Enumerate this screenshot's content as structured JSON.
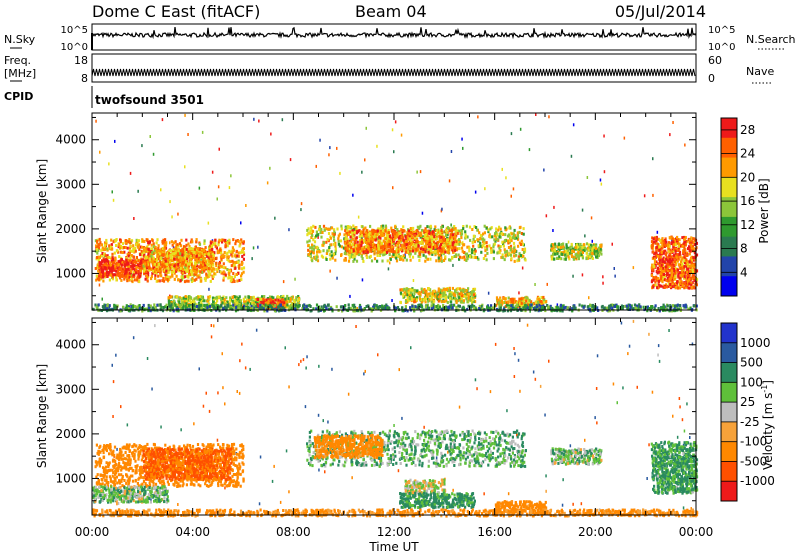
{
  "header": {
    "station": "Dome C East (fitACF)",
    "beam": "Beam 04",
    "date": "05/Jul/2014"
  },
  "panels": {
    "nsky": {
      "label": "N.Sky",
      "ticks": [
        "10^5",
        "10^0"
      ],
      "right_label": "N.Search",
      "right_ticks": [
        "10^5",
        "10^0"
      ]
    },
    "freq": {
      "label_line1": "Freq.",
      "label_line2": "[MHz]",
      "ticks": [
        "18",
        "8"
      ],
      "right_label": "Nave",
      "right_ticks": [
        "60",
        "0"
      ]
    },
    "cpid": {
      "label": "CPID",
      "value": "twofsound 3501"
    }
  },
  "chart_data": [
    {
      "type": "heatmap",
      "quantity": "power",
      "xlabel": "Time UT",
      "ylabel": "Slant Range [km]",
      "x_ticks": [
        "00:00",
        "04:00",
        "08:00",
        "12:00",
        "16:00",
        "20:00",
        "00:00"
      ],
      "x_range_hours": [
        0,
        24
      ],
      "y_ticks": [
        1000,
        2000,
        3000,
        4000
      ],
      "y_range_km": [
        180,
        4600
      ],
      "colorbar_label": "Power [dB]",
      "colorbar_ticks": [
        4,
        8,
        12,
        16,
        20,
        24,
        28
      ],
      "colorbar_range": [
        0,
        30
      ],
      "colors": [
        "#0000ee",
        "#2244aa",
        "#2a7a50",
        "#2f9a2f",
        "#8cc63a",
        "#e8e020",
        "#ff9a00",
        "#ff6000",
        "#ee1a1a"
      ],
      "scatter_regions": [
        {
          "t0": 0.1,
          "t1": 6.0,
          "r0": 850,
          "r1": 1800,
          "value": 22
        },
        {
          "t0": 0.2,
          "t1": 2.2,
          "r0": 950,
          "r1": 1350,
          "value": 28
        },
        {
          "t0": 2.0,
          "t1": 4.8,
          "r0": 1050,
          "r1": 1600,
          "value": 22
        },
        {
          "t0": 3.0,
          "t1": 8.2,
          "r0": 240,
          "r1": 520,
          "value": 16
        },
        {
          "t0": 6.5,
          "t1": 7.6,
          "r0": 250,
          "r1": 460,
          "value": 27
        },
        {
          "t0": 8.5,
          "t1": 17.2,
          "r0": 1300,
          "r1": 2100,
          "value": 18
        },
        {
          "t0": 10.0,
          "t1": 14.5,
          "r0": 1500,
          "r1": 2000,
          "value": 23
        },
        {
          "t0": 12.2,
          "t1": 15.2,
          "r0": 380,
          "r1": 700,
          "value": 18
        },
        {
          "t0": 16.0,
          "t1": 18.0,
          "r0": 260,
          "r1": 500,
          "value": 20
        },
        {
          "t0": 18.2,
          "t1": 20.2,
          "r0": 1350,
          "r1": 1700,
          "value": 16
        },
        {
          "t0": 22.2,
          "t1": 24.0,
          "r0": 700,
          "r1": 1850,
          "value": 25
        },
        {
          "t0": 0.0,
          "t1": 24.0,
          "r0": 190,
          "r1": 330,
          "value": 10
        }
      ]
    },
    {
      "type": "heatmap",
      "quantity": "velocity",
      "xlabel": "Time UT",
      "ylabel": "Slant Range [km]",
      "x_ticks": [
        "00:00",
        "04:00",
        "08:00",
        "12:00",
        "16:00",
        "20:00",
        "00:00"
      ],
      "x_range_hours": [
        0,
        24
      ],
      "y_ticks": [
        1000,
        2000,
        3000,
        4000
      ],
      "y_range_km": [
        180,
        4600
      ],
      "colorbar_label": "Velocity [m s",
      "colorbar_label_exponent": "-1",
      "colorbar_label_close": "]",
      "colorbar_ticks": [
        "1000",
        "500",
        "100",
        "25",
        "-25",
        "-100",
        "-500",
        "-1000"
      ],
      "colors": [
        "#2233cc",
        "#2a5aa0",
        "#2a8a60",
        "#5fc03a",
        "#bdbdbd",
        "#f6a23a",
        "#ff8800",
        "#ff5000",
        "#ee1a1a"
      ],
      "scatter_regions": [
        {
          "t0": 0.1,
          "t1": 6.0,
          "r0": 850,
          "r1": 1800,
          "value": -300
        },
        {
          "t0": 2.0,
          "t1": 5.5,
          "r0": 1000,
          "r1": 1700,
          "value": -600
        },
        {
          "t0": 0.0,
          "t1": 3.0,
          "r0": 500,
          "r1": 850,
          "value": 60
        },
        {
          "t0": 8.5,
          "t1": 17.2,
          "r0": 1300,
          "r1": 2100,
          "value": 80
        },
        {
          "t0": 8.8,
          "t1": 11.5,
          "r0": 1500,
          "r1": 2000,
          "value": -200
        },
        {
          "t0": 12.4,
          "t1": 14.0,
          "r0": 700,
          "r1": 1000,
          "value": 0
        },
        {
          "t0": 12.2,
          "t1": 15.2,
          "r0": 380,
          "r1": 700,
          "value": 150
        },
        {
          "t0": 16.0,
          "t1": 18.0,
          "r0": 260,
          "r1": 520,
          "value": -200
        },
        {
          "t0": 18.2,
          "t1": 20.2,
          "r0": 1350,
          "r1": 1700,
          "value": 60
        },
        {
          "t0": 22.2,
          "t1": 24.0,
          "r0": 700,
          "r1": 1850,
          "value": 120
        },
        {
          "t0": 0.0,
          "t1": 24.0,
          "r0": 190,
          "r1": 330,
          "value": -150
        }
      ]
    }
  ]
}
